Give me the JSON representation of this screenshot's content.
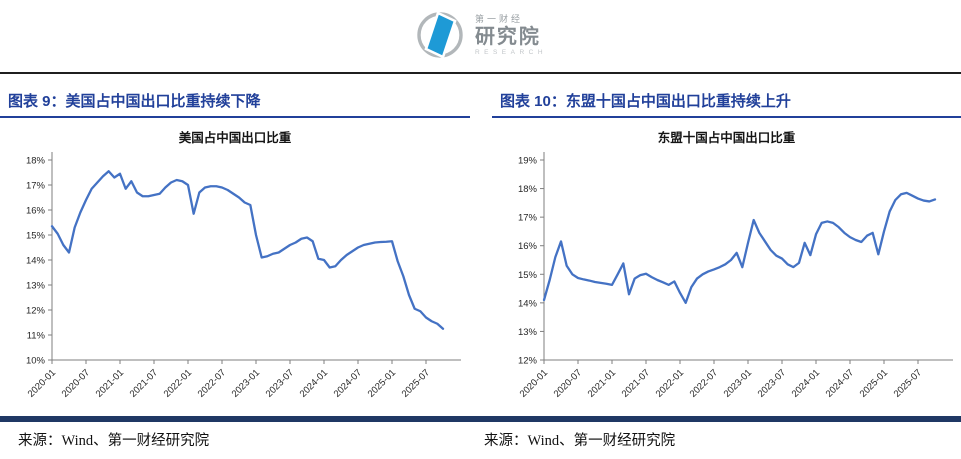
{
  "logo": {
    "brand_top": "第一财经",
    "brand_main": "研究院",
    "brand_sub": "RESEARCH"
  },
  "colors": {
    "line_blue": "#4472C4",
    "header_blue": "#21409A",
    "bar_navy": "#1F3864",
    "logo_blue": "#1E9AD6"
  },
  "figures": [
    {
      "label": "图表 9：美国占中国出口比重持续下降",
      "source": "来源：Wind、第一财经研究院"
    },
    {
      "label": "图表 10：东盟十国占中国出口比重持续上升",
      "source": "来源：Wind、第一财经研究院"
    }
  ],
  "chart_data": [
    {
      "type": "line",
      "title": "美国占中国出口比重",
      "xlabel": "",
      "ylabel": "",
      "ylim": [
        10,
        18
      ],
      "y_tick_step": 1,
      "y_tick_format": "percent",
      "grid": false,
      "legend": "none",
      "line_color": "#4472C4",
      "x_tick_labels": [
        "2020-01",
        "2020-07",
        "2021-01",
        "2021-07",
        "2022-01",
        "2022-07",
        "2023-01",
        "2023-07",
        "2024-01",
        "2024-07",
        "2025-01",
        "2025-07"
      ],
      "x": [
        "2020-01",
        "2020-02",
        "2020-03",
        "2020-04",
        "2020-05",
        "2020-06",
        "2020-07",
        "2020-08",
        "2020-09",
        "2020-10",
        "2020-11",
        "2020-12",
        "2021-01",
        "2021-02",
        "2021-03",
        "2021-04",
        "2021-05",
        "2021-06",
        "2021-07",
        "2021-08",
        "2021-09",
        "2021-10",
        "2021-11",
        "2021-12",
        "2022-01",
        "2022-02",
        "2022-03",
        "2022-04",
        "2022-05",
        "2022-06",
        "2022-07",
        "2022-08",
        "2022-09",
        "2022-10",
        "2022-11",
        "2022-12",
        "2023-01",
        "2023-02",
        "2023-03",
        "2023-04",
        "2023-05",
        "2023-06",
        "2023-07",
        "2023-08",
        "2023-09",
        "2023-10",
        "2023-11",
        "2023-12",
        "2024-01",
        "2024-02",
        "2024-03",
        "2024-04",
        "2024-05",
        "2024-06",
        "2024-07",
        "2024-08",
        "2024-09",
        "2024-10",
        "2024-11",
        "2024-12",
        "2025-01",
        "2025-02",
        "2025-03",
        "2025-04",
        "2025-05",
        "2025-06",
        "2025-07",
        "2025-08",
        "2025-09",
        "2025-10"
      ],
      "values": [
        15.35,
        15.05,
        14.6,
        14.3,
        15.3,
        15.9,
        16.4,
        16.85,
        17.1,
        17.35,
        17.55,
        17.3,
        17.45,
        16.85,
        17.15,
        16.7,
        16.55,
        16.55,
        16.6,
        16.65,
        16.9,
        17.1,
        17.2,
        17.15,
        17.0,
        15.85,
        16.7,
        16.9,
        16.95,
        16.95,
        16.9,
        16.8,
        16.65,
        16.5,
        16.3,
        16.2,
        15.0,
        14.1,
        14.15,
        14.25,
        14.3,
        14.45,
        14.6,
        14.7,
        14.85,
        14.9,
        14.75,
        14.05,
        14.0,
        13.7,
        13.75,
        14.0,
        14.2,
        14.35,
        14.5,
        14.6,
        14.65,
        14.7,
        14.72,
        14.73,
        14.75,
        13.95,
        13.35,
        12.6,
        12.05,
        11.95,
        11.7,
        11.55,
        11.45,
        11.25
      ]
    },
    {
      "type": "line",
      "title": "东盟十国占中国出口比重",
      "xlabel": "",
      "ylabel": "",
      "ylim": [
        12,
        19
      ],
      "y_tick_step": 1,
      "y_tick_format": "percent",
      "grid": false,
      "legend": "none",
      "line_color": "#4472C4",
      "x_tick_labels": [
        "2020-01",
        "2020-07",
        "2021-01",
        "2021-07",
        "2022-01",
        "2022-07",
        "2023-01",
        "2023-07",
        "2024-01",
        "2024-07",
        "2025-01",
        "2025-07"
      ],
      "x": [
        "2020-01",
        "2020-02",
        "2020-03",
        "2020-04",
        "2020-05",
        "2020-06",
        "2020-07",
        "2020-08",
        "2020-09",
        "2020-10",
        "2020-11",
        "2020-12",
        "2021-01",
        "2021-02",
        "2021-03",
        "2021-04",
        "2021-05",
        "2021-06",
        "2021-07",
        "2021-08",
        "2021-09",
        "2021-10",
        "2021-11",
        "2021-12",
        "2022-01",
        "2022-02",
        "2022-03",
        "2022-04",
        "2022-05",
        "2022-06",
        "2022-07",
        "2022-08",
        "2022-09",
        "2022-10",
        "2022-11",
        "2022-12",
        "2023-01",
        "2023-02",
        "2023-03",
        "2023-04",
        "2023-05",
        "2023-06",
        "2023-07",
        "2023-08",
        "2023-09",
        "2023-10",
        "2023-11",
        "2023-12",
        "2024-01",
        "2024-02",
        "2024-03",
        "2024-04",
        "2024-05",
        "2024-06",
        "2024-07",
        "2024-08",
        "2024-09",
        "2024-10",
        "2024-11",
        "2024-12",
        "2025-01",
        "2025-02",
        "2025-03",
        "2025-04",
        "2025-05",
        "2025-06",
        "2025-07",
        "2025-08",
        "2025-09",
        "2025-10"
      ],
      "values": [
        14.1,
        14.8,
        15.6,
        16.15,
        15.3,
        15.0,
        14.87,
        14.82,
        14.78,
        14.73,
        14.7,
        14.67,
        14.63,
        15.0,
        15.38,
        14.3,
        14.85,
        14.97,
        15.02,
        14.9,
        14.8,
        14.72,
        14.63,
        14.75,
        14.35,
        14.0,
        14.55,
        14.85,
        15.0,
        15.1,
        15.17,
        15.25,
        15.35,
        15.5,
        15.75,
        15.25,
        16.1,
        16.9,
        16.45,
        16.15,
        15.85,
        15.65,
        15.55,
        15.35,
        15.25,
        15.4,
        16.1,
        15.67,
        16.4,
        16.8,
        16.85,
        16.8,
        16.65,
        16.45,
        16.3,
        16.2,
        16.13,
        16.35,
        16.45,
        15.7,
        16.5,
        17.2,
        17.6,
        17.8,
        17.85,
        17.75,
        17.65,
        17.58,
        17.55,
        17.62
      ]
    }
  ]
}
